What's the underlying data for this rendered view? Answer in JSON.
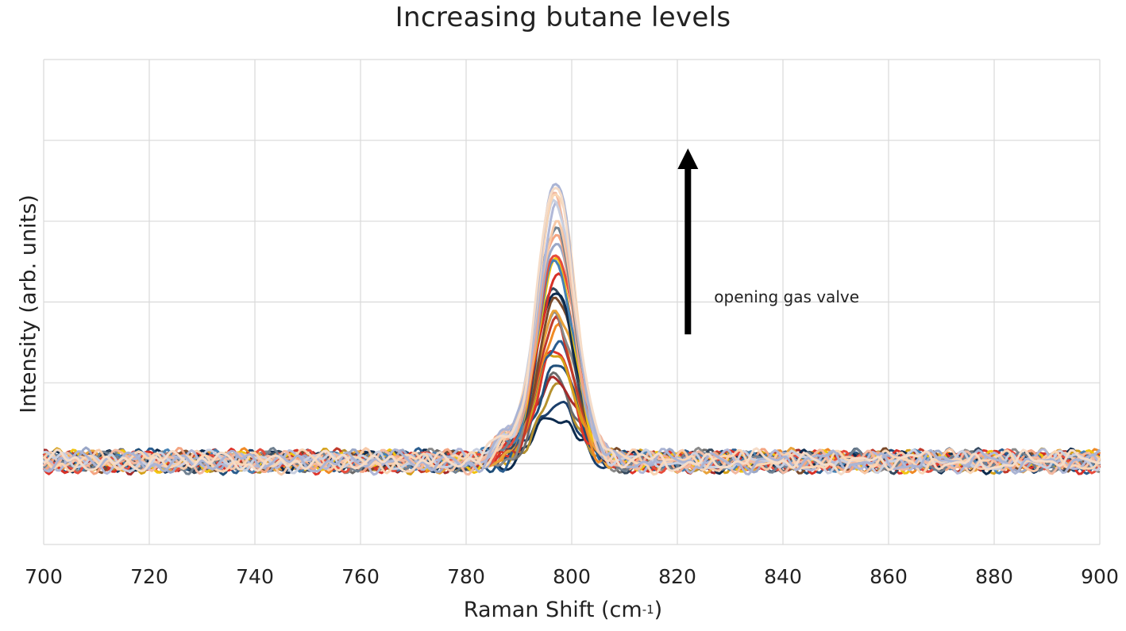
{
  "chart_data": {
    "type": "line",
    "title": "Increasing butane levels",
    "xlabel": "Raman Shift (cm",
    "xlabel_sup": "-1",
    "xlabel_close": ")",
    "ylabel": "Intensity (arb. units)",
    "xlim": [
      700,
      900
    ],
    "xticks": [
      "700",
      "720",
      "740",
      "760",
      "780",
      "800",
      "820",
      "840",
      "860",
      "880",
      "900"
    ],
    "grid": true,
    "peak_center": 797,
    "peak_heights": [
      0.55,
      0.75,
      0.9,
      1.0,
      1.1,
      1.2,
      1.3,
      1.4,
      1.5,
      1.6,
      1.7,
      1.8,
      1.9,
      2.0,
      2.1,
      2.2,
      2.3,
      2.4,
      2.5,
      2.6,
      2.7,
      2.8,
      2.9,
      3.0,
      3.1,
      3.2,
      3.3,
      3.35,
      3.4,
      3.45
    ],
    "series_colors": [
      "#0c2a4d",
      "#1b3f6b",
      "#b5912e",
      "#6b6b6b",
      "#a52a2a",
      "#1f4e79",
      "#e0352b",
      "#d4a017",
      "#2a5d8f",
      "#f08a24",
      "#c0392b",
      "#8a8a8a",
      "#e8a23a",
      "#7a4a2a",
      "#34495e",
      "#0c2a4d",
      "#d73027",
      "#f1c40f",
      "#4682b4",
      "#e74c3c",
      "#9aa7c7",
      "#f4a582",
      "#708090",
      "#f7c9a8",
      "#b0b8d8",
      "#f2b8a0",
      "#c8cfe0",
      "#f9d5b4",
      "#aab4d4",
      "#f5dcc8"
    ],
    "annotation": {
      "text": "opening gas valve",
      "arrow_x": 822,
      "arrow_y_from": 1.6,
      "arrow_y_to": 3.9
    }
  }
}
